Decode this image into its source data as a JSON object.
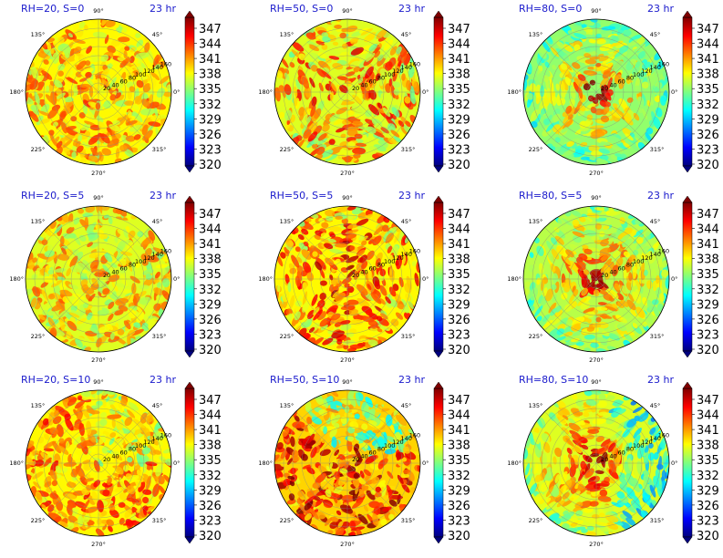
{
  "figure": {
    "colormap": [
      "#00007f",
      "#0000ff",
      "#007fff",
      "#00ffff",
      "#7fff7f",
      "#ffff00",
      "#ff7f00",
      "#ff0000",
      "#7f0000"
    ],
    "grid_color": "#888888",
    "title_color": "#1a1acc"
  },
  "chart_data": [
    {
      "type": "heatmap",
      "projection": "polar",
      "title_left": "RH=20, S=0",
      "title_right": "23 hr",
      "theta_ticks": [
        "0°",
        "45°",
        "90°",
        "135°",
        "180°",
        "225°",
        "270°",
        "315°"
      ],
      "r_ticks": [
        "20",
        "40",
        "60",
        "80",
        "100",
        "120",
        "140",
        "160"
      ],
      "colorbar_ticks": [
        "347",
        "344",
        "341",
        "338",
        "335",
        "332",
        "329",
        "326",
        "323",
        "320"
      ],
      "vmin": 320,
      "vmax": 347,
      "background_value": 337,
      "pattern": "noise",
      "noise_amp": 6,
      "seed": 11
    },
    {
      "type": "heatmap",
      "projection": "polar",
      "title_left": "RH=50, S=0",
      "title_right": "23 hr",
      "theta_ticks": [
        "0°",
        "45°",
        "90°",
        "135°",
        "180°",
        "225°",
        "270°",
        "315°"
      ],
      "r_ticks": [
        "20",
        "40",
        "60",
        "80",
        "100",
        "120",
        "140",
        "160"
      ],
      "colorbar_ticks": [
        "347",
        "344",
        "341",
        "338",
        "335",
        "332",
        "329",
        "326",
        "323",
        "320"
      ],
      "vmin": 320,
      "vmax": 347,
      "background_value": 336,
      "pattern": "swirl-weak",
      "noise_amp": 8,
      "seed": 23
    },
    {
      "type": "heatmap",
      "projection": "polar",
      "title_left": "RH=80, S=0",
      "title_right": "23 hr",
      "theta_ticks": [
        "0°",
        "45°",
        "90°",
        "135°",
        "180°",
        "225°",
        "270°",
        "315°"
      ],
      "r_ticks": [
        "20",
        "40",
        "60",
        "80",
        "100",
        "120",
        "140",
        "160"
      ],
      "colorbar_ticks": [
        "347",
        "344",
        "341",
        "338",
        "335",
        "332",
        "329",
        "326",
        "323",
        "320"
      ],
      "vmin": 320,
      "vmax": 347,
      "background_value": 334,
      "pattern": "hurricane",
      "noise_amp": 7,
      "seed": 37
    },
    {
      "type": "heatmap",
      "projection": "polar",
      "title_left": "RH=20, S=5",
      "title_right": "23 hr",
      "theta_ticks": [
        "0°",
        "45°",
        "90°",
        "135°",
        "180°",
        "225°",
        "270°",
        "315°"
      ],
      "r_ticks": [
        "20",
        "40",
        "60",
        "80",
        "100",
        "120",
        "140",
        "160"
      ],
      "colorbar_ticks": [
        "347",
        "344",
        "341",
        "338",
        "335",
        "332",
        "329",
        "326",
        "323",
        "320"
      ],
      "vmin": 320,
      "vmax": 347,
      "background_value": 336,
      "pattern": "noise",
      "noise_amp": 6,
      "seed": 41
    },
    {
      "type": "heatmap",
      "projection": "polar",
      "title_left": "RH=50, S=5",
      "title_right": "23 hr",
      "theta_ticks": [
        "0°",
        "45°",
        "90°",
        "135°",
        "180°",
        "225°",
        "270°",
        "315°"
      ],
      "r_ticks": [
        "20",
        "40",
        "60",
        "80",
        "100",
        "120",
        "140",
        "160"
      ],
      "colorbar_ticks": [
        "347",
        "344",
        "341",
        "338",
        "335",
        "332",
        "329",
        "326",
        "323",
        "320"
      ],
      "vmin": 320,
      "vmax": 347,
      "background_value": 337,
      "pattern": "swirl-weak",
      "noise_amp": 8,
      "seed": 53
    },
    {
      "type": "heatmap",
      "projection": "polar",
      "title_left": "RH=80, S=5",
      "title_right": "23 hr",
      "theta_ticks": [
        "0°",
        "45°",
        "90°",
        "135°",
        "180°",
        "225°",
        "270°",
        "315°"
      ],
      "r_ticks": [
        "20",
        "40",
        "60",
        "80",
        "100",
        "120",
        "140",
        "160"
      ],
      "colorbar_ticks": [
        "347",
        "344",
        "341",
        "338",
        "335",
        "332",
        "329",
        "326",
        "323",
        "320"
      ],
      "vmin": 320,
      "vmax": 347,
      "background_value": 335,
      "pattern": "hurricane",
      "noise_amp": 7,
      "seed": 67
    },
    {
      "type": "heatmap",
      "projection": "polar",
      "title_left": "RH=20, S=10",
      "title_right": "23 hr",
      "theta_ticks": [
        "0°",
        "45°",
        "90°",
        "135°",
        "180°",
        "225°",
        "270°",
        "315°"
      ],
      "r_ticks": [
        "20",
        "40",
        "60",
        "80",
        "100",
        "120",
        "140",
        "160"
      ],
      "colorbar_ticks": [
        "347",
        "344",
        "341",
        "338",
        "335",
        "332",
        "329",
        "326",
        "323",
        "320"
      ],
      "vmin": 320,
      "vmax": 347,
      "background_value": 337,
      "pattern": "noise-warm-southwest",
      "noise_amp": 6,
      "seed": 71
    },
    {
      "type": "heatmap",
      "projection": "polar",
      "title_left": "RH=50, S=10",
      "title_right": "23 hr",
      "theta_ticks": [
        "0°",
        "45°",
        "90°",
        "135°",
        "180°",
        "225°",
        "270°",
        "315°"
      ],
      "r_ticks": [
        "20",
        "40",
        "60",
        "80",
        "100",
        "120",
        "140",
        "160"
      ],
      "colorbar_ticks": [
        "347",
        "344",
        "341",
        "338",
        "335",
        "332",
        "329",
        "326",
        "323",
        "320"
      ],
      "vmin": 320,
      "vmax": 347,
      "background_value": 338,
      "pattern": "sheared",
      "noise_amp": 8,
      "seed": 83
    },
    {
      "type": "heatmap",
      "projection": "polar",
      "title_left": "RH=80, S=10",
      "title_right": "23 hr",
      "theta_ticks": [
        "0°",
        "45°",
        "90°",
        "135°",
        "180°",
        "225°",
        "270°",
        "315°"
      ],
      "r_ticks": [
        "20",
        "40",
        "60",
        "80",
        "100",
        "120",
        "140",
        "160"
      ],
      "colorbar_ticks": [
        "347",
        "344",
        "341",
        "338",
        "335",
        "332",
        "329",
        "326",
        "323",
        "320"
      ],
      "vmin": 320,
      "vmax": 347,
      "background_value": 336,
      "pattern": "hurricane-sheared",
      "noise_amp": 7,
      "seed": 97
    }
  ]
}
